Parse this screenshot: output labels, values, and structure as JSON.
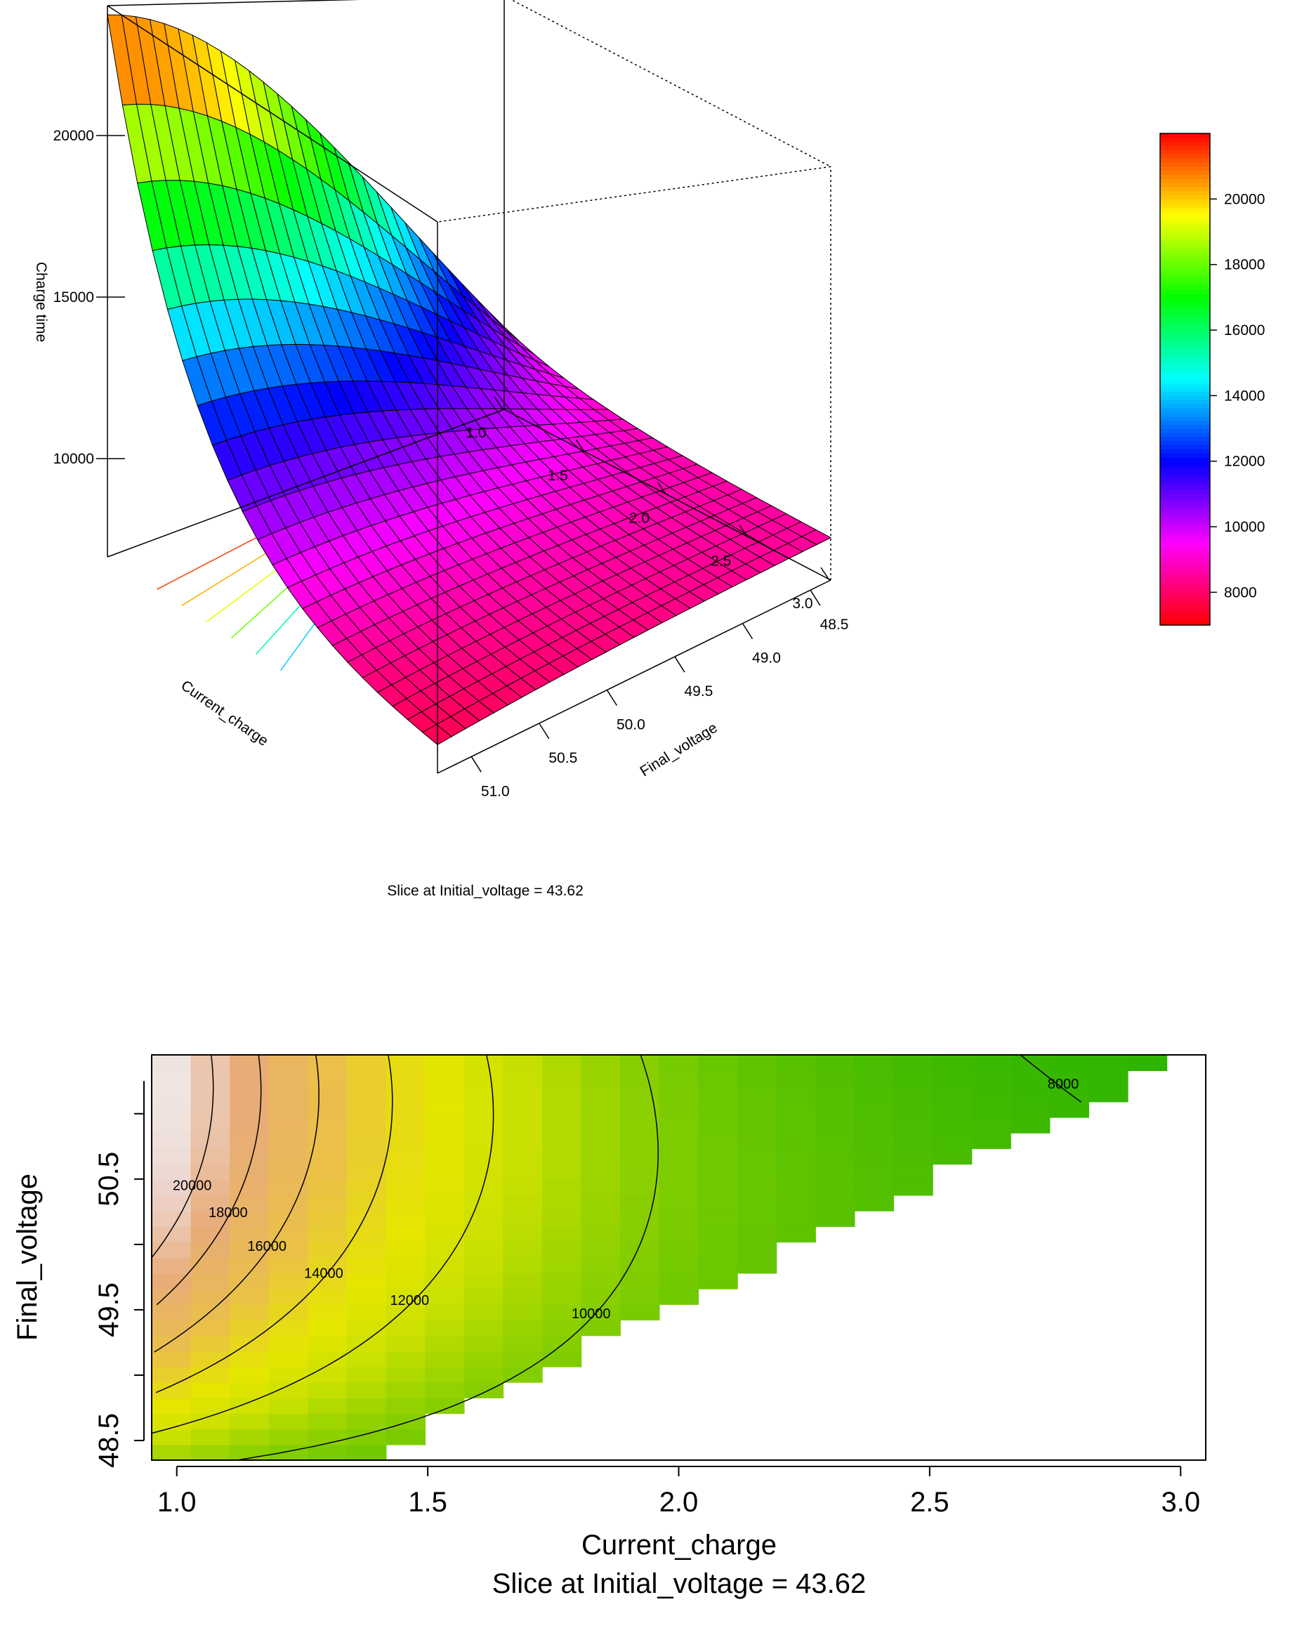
{
  "chart_data": [
    {
      "type": "surface",
      "zlabel": "Charge time",
      "xlabel": "Current_charge",
      "ylabel": "Final_voltage",
      "caption": "Slice at Initial_voltage = 43.62",
      "x_ticks": [
        "1.0",
        "1.5",
        "2.0",
        "2.5",
        "3.0"
      ],
      "y_ticks": [
        "48.5",
        "49.0",
        "49.5",
        "50.0",
        "50.5",
        "51.0"
      ],
      "z_ticks": [
        "10000",
        "15000",
        "20000"
      ],
      "xlim": [
        1.0,
        3.0
      ],
      "ylim": [
        48.35,
        51.25
      ],
      "zlim": [
        7000,
        22000
      ],
      "colorbar": {
        "range": [
          7000,
          22000
        ],
        "ticks": [
          "8000",
          "10000",
          "12000",
          "14000",
          "16000",
          "18000",
          "20000"
        ],
        "palette": "rainbow"
      }
    },
    {
      "type": "contour",
      "xlabel": "Current_charge",
      "ylabel": "Final_voltage",
      "caption": "Slice at Initial_voltage = 43.62",
      "x_ticks": [
        "1.0",
        "1.5",
        "2.0",
        "2.5",
        "3.0"
      ],
      "y_ticks": [
        "48.5",
        "49.5",
        "50.5"
      ],
      "xlim": [
        0.95,
        3.05
      ],
      "ylim": [
        48.35,
        51.45
      ],
      "contour_levels": [
        "8000",
        "10000",
        "12000",
        "14000",
        "16000",
        "18000",
        "20000"
      ],
      "palette": "terrain"
    }
  ]
}
